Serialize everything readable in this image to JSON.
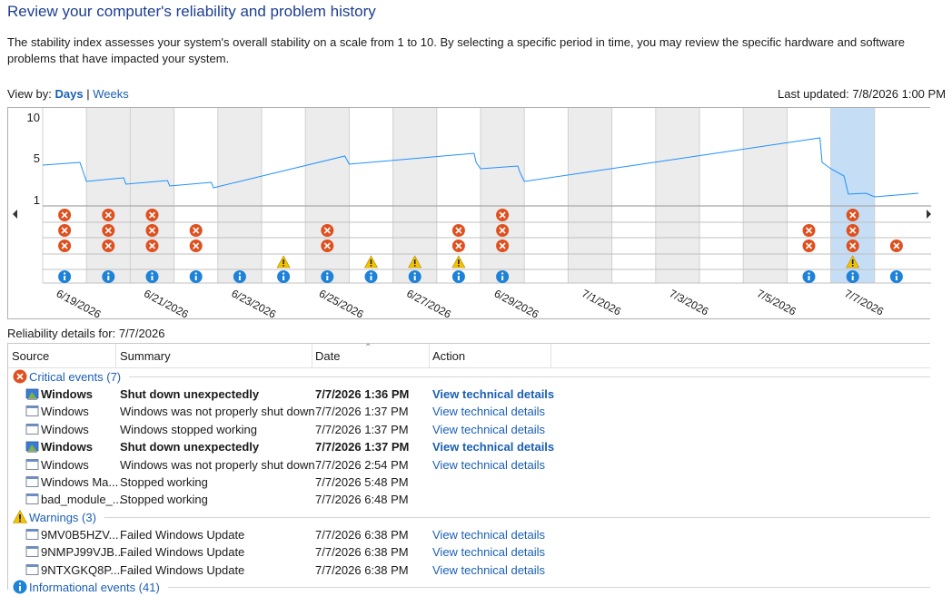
{
  "page": {
    "title": "Review your computer's reliability and problem history",
    "description": "The stability index assesses your system's overall stability on a scale from 1 to 10. By selecting a specific period in time, you may review the specific hardware and software problems that have impacted your system."
  },
  "view_by": {
    "label": "View by:",
    "days": "Days",
    "separator": "|",
    "weeks": "Weeks",
    "active": "Days"
  },
  "last_updated": "Last updated: 7/8/2026 1:00 PM",
  "chart": {
    "y_ticks": [
      "10",
      "5",
      "1"
    ],
    "selected_day": "7/7/2026",
    "accent": "#1e90ff",
    "selected_fill": "#c6def5",
    "days": [
      {
        "date": "6/19/2026",
        "label": "6/19/2026",
        "shaded": false,
        "critical": 3,
        "warning": false,
        "info": true
      },
      {
        "date": "6/20/2026",
        "label": "",
        "shaded": true,
        "critical": 3,
        "warning": false,
        "info": true
      },
      {
        "date": "6/21/2026",
        "label": "6/21/2026",
        "shaded": true,
        "critical": 3,
        "warning": false,
        "info": true
      },
      {
        "date": "6/22/2026",
        "label": "",
        "shaded": false,
        "critical": 2,
        "warning": false,
        "info": true
      },
      {
        "date": "6/23/2026",
        "label": "6/23/2026",
        "shaded": true,
        "critical": 0,
        "warning": false,
        "info": true
      },
      {
        "date": "6/24/2026",
        "label": "",
        "shaded": false,
        "critical": 0,
        "warning": true,
        "info": true
      },
      {
        "date": "6/25/2026",
        "label": "6/25/2026",
        "shaded": true,
        "critical": 2,
        "warning": false,
        "info": true
      },
      {
        "date": "6/26/2026",
        "label": "",
        "shaded": false,
        "critical": 0,
        "warning": true,
        "info": true
      },
      {
        "date": "6/27/2026",
        "label": "6/27/2026",
        "shaded": true,
        "critical": 0,
        "warning": true,
        "info": true
      },
      {
        "date": "6/28/2026",
        "label": "",
        "shaded": false,
        "critical": 2,
        "warning": true,
        "info": true
      },
      {
        "date": "6/29/2026",
        "label": "6/29/2026",
        "shaded": true,
        "critical": 3,
        "warning": false,
        "info": true
      },
      {
        "date": "6/30/2026",
        "label": "",
        "shaded": false,
        "critical": 0,
        "warning": false,
        "info": false
      },
      {
        "date": "7/1/2026",
        "label": "7/1/2026",
        "shaded": true,
        "critical": 0,
        "warning": false,
        "info": false
      },
      {
        "date": "7/2/2026",
        "label": "",
        "shaded": false,
        "critical": 0,
        "warning": false,
        "info": false
      },
      {
        "date": "7/3/2026",
        "label": "7/3/2026",
        "shaded": true,
        "critical": 0,
        "warning": false,
        "info": false
      },
      {
        "date": "7/4/2026",
        "label": "",
        "shaded": false,
        "critical": 0,
        "warning": false,
        "info": false
      },
      {
        "date": "7/5/2026",
        "label": "7/5/2026",
        "shaded": true,
        "critical": 0,
        "warning": false,
        "info": false
      },
      {
        "date": "7/6/2026",
        "label": "",
        "shaded": false,
        "critical": 2,
        "warning": false,
        "info": true
      },
      {
        "date": "7/7/2026",
        "label": "7/7/2026",
        "shaded": false,
        "critical": 3,
        "warning": true,
        "info": true
      },
      {
        "date": "7/8/2026",
        "label": "",
        "shaded": false,
        "critical": 1,
        "warning": false,
        "info": true
      }
    ],
    "stability_index": [
      [
        0.0,
        4.7
      ],
      [
        0.85,
        5.0
      ],
      [
        0.9,
        4.3
      ],
      [
        1.0,
        2.9
      ],
      [
        1.85,
        3.3
      ],
      [
        1.9,
        2.6
      ],
      [
        2.85,
        3.0
      ],
      [
        2.9,
        2.4
      ],
      [
        3.85,
        2.8
      ],
      [
        3.9,
        2.2
      ],
      [
        6.9,
        5.7
      ],
      [
        7.0,
        4.8
      ],
      [
        9.85,
        6.0
      ],
      [
        9.9,
        5.0
      ],
      [
        10.0,
        4.3
      ],
      [
        10.85,
        4.6
      ],
      [
        10.9,
        3.9
      ],
      [
        11.0,
        2.9
      ],
      [
        17.75,
        7.7
      ],
      [
        17.8,
        5.0
      ],
      [
        18.0,
        4.3
      ],
      [
        18.3,
        3.5
      ],
      [
        18.4,
        1.5
      ],
      [
        18.8,
        1.6
      ],
      [
        19.0,
        1.2
      ],
      [
        20.0,
        1.6
      ]
    ]
  },
  "details": {
    "label": "Reliability details for: 7/7/2026",
    "columns": {
      "source": "Source",
      "summary": "Summary",
      "date": "Date",
      "action": "Action"
    },
    "groups": [
      {
        "key": "critical",
        "label": "Critical events (7)",
        "icon": "critical-icon",
        "rows": [
          {
            "source": "Windows",
            "summary": "Shut down unexpectedly",
            "date": "7/7/2026 1:36 PM",
            "action": "View technical details",
            "bold": true,
            "icon": "windows-shield-icon"
          },
          {
            "source": "Windows",
            "summary": "Windows was not properly shut down",
            "date": "7/7/2026 1:37 PM",
            "action": "View technical details",
            "bold": false,
            "icon": "app-icon"
          },
          {
            "source": "Windows",
            "summary": "Windows stopped working",
            "date": "7/7/2026 1:37 PM",
            "action": "View technical details",
            "bold": false,
            "icon": "app-icon"
          },
          {
            "source": "Windows",
            "summary": "Shut down unexpectedly",
            "date": "7/7/2026 1:37 PM",
            "action": "View technical details",
            "bold": true,
            "icon": "windows-shield-icon"
          },
          {
            "source": "Windows",
            "summary": "Windows was not properly shut down",
            "date": "7/7/2026 2:54 PM",
            "action": "View technical details",
            "bold": false,
            "icon": "app-icon"
          },
          {
            "source": "Windows Ma...",
            "summary": "Stopped working",
            "date": "7/7/2026 5:48 PM",
            "action": "",
            "bold": false,
            "icon": "app-icon"
          },
          {
            "source": "bad_module_...",
            "summary": "Stopped working",
            "date": "7/7/2026 6:48 PM",
            "action": "",
            "bold": false,
            "icon": "app-icon"
          }
        ]
      },
      {
        "key": "warnings",
        "label": "Warnings (3)",
        "icon": "warning-icon",
        "rows": [
          {
            "source": "9MV0B5HZV...",
            "summary": "Failed Windows Update",
            "date": "7/7/2026 6:38 PM",
            "action": "View technical details",
            "bold": false,
            "icon": "app-icon"
          },
          {
            "source": "9NMPJ99VJB...",
            "summary": "Failed Windows Update",
            "date": "7/7/2026 6:38 PM",
            "action": "View technical details",
            "bold": false,
            "icon": "app-icon"
          },
          {
            "source": "9NTXGKQ8P...",
            "summary": "Failed Windows Update",
            "date": "7/7/2026 6:38 PM",
            "action": "View technical details",
            "bold": false,
            "icon": "app-icon"
          }
        ]
      },
      {
        "key": "info",
        "label": "Informational events (41)",
        "icon": "info-icon",
        "rows": []
      }
    ]
  },
  "colors": {
    "critical": "#e0501f",
    "warning": "#f4c300",
    "info": "#1e82d8",
    "link": "#1a5fb4",
    "heading": "#1e3f8f"
  }
}
